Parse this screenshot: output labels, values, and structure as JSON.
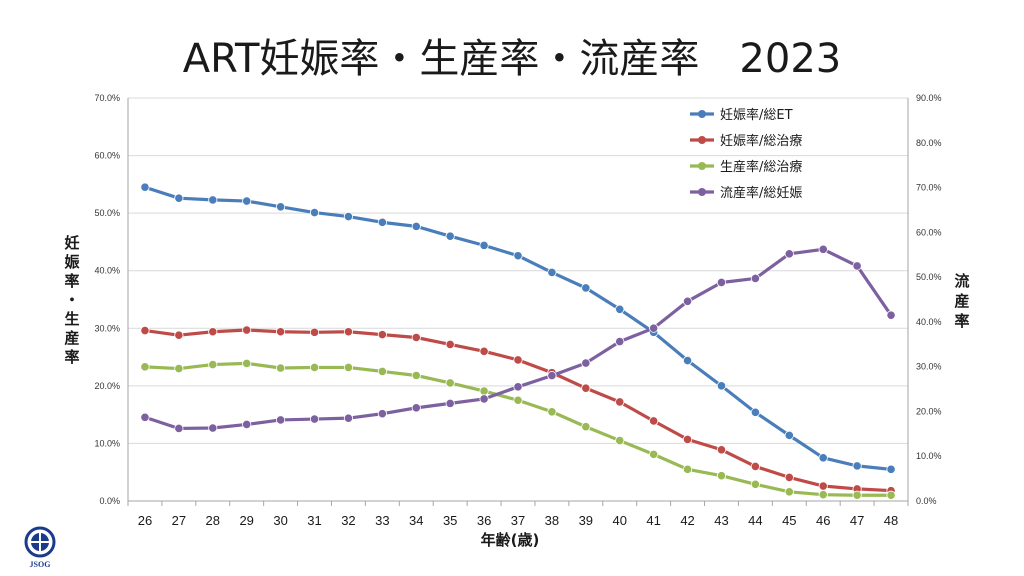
{
  "chart_data": {
    "type": "line",
    "title": "ART妊娠率・生産率・流産率　2023",
    "xlabel": "年齢(歳)",
    "ylabel_left": "妊娠率・生産率",
    "ylabel_right": "流産率",
    "x": [
      26,
      27,
      28,
      29,
      30,
      31,
      32,
      33,
      34,
      35,
      36,
      37,
      38,
      39,
      40,
      41,
      42,
      43,
      44,
      45,
      46,
      47,
      48
    ],
    "ylim_left": [
      0,
      70
    ],
    "ylim_right": [
      0,
      90
    ],
    "yticks_left": [
      "0.0%",
      "10.0%",
      "20.0%",
      "30.0%",
      "40.0%",
      "50.0%",
      "60.0%",
      "70.0%"
    ],
    "yticks_right": [
      "0.0%",
      "10.0%",
      "20.0%",
      "30.0%",
      "40.0%",
      "50.0%",
      "60.0%",
      "70.0%",
      "80.0%",
      "90.0%"
    ],
    "grid": "horizontal",
    "legend_position": "top-right",
    "series": [
      {
        "name": "妊娠率/総ET",
        "axis": "left",
        "color": "#4a7ebb",
        "values": [
          54.5,
          52.6,
          52.3,
          52.1,
          51.1,
          50.1,
          49.4,
          48.4,
          47.7,
          46.0,
          44.4,
          42.6,
          39.7,
          37.0,
          33.3,
          29.3,
          24.4,
          20.0,
          15.4,
          11.4,
          7.5,
          6.1,
          5.5
        ]
      },
      {
        "name": "妊娠率/総治療",
        "axis": "left",
        "color": "#be4b48",
        "values": [
          29.6,
          28.8,
          29.4,
          29.7,
          29.4,
          29.3,
          29.4,
          28.9,
          28.4,
          27.2,
          26.0,
          24.5,
          22.3,
          19.6,
          17.2,
          13.9,
          10.7,
          8.9,
          6.0,
          4.1,
          2.6,
          2.1,
          1.8
        ]
      },
      {
        "name": "生産率/総治療",
        "axis": "left",
        "color": "#98b954",
        "values": [
          23.3,
          23.0,
          23.7,
          23.9,
          23.1,
          23.2,
          23.2,
          22.5,
          21.8,
          20.5,
          19.1,
          17.5,
          15.5,
          12.9,
          10.5,
          8.1,
          5.5,
          4.4,
          2.9,
          1.6,
          1.1,
          1.0,
          1.0
        ]
      },
      {
        "name": "流産率/総妊娠",
        "axis": "right",
        "color": "#7d60a0",
        "values": [
          18.7,
          16.2,
          16.3,
          17.1,
          18.1,
          18.3,
          18.5,
          19.5,
          20.8,
          21.8,
          22.8,
          25.5,
          28.0,
          30.8,
          35.6,
          38.6,
          44.6,
          48.8,
          49.7,
          55.2,
          56.2,
          52.5,
          41.5
        ]
      }
    ]
  },
  "logo": {
    "text": "JSOG",
    "color": "#1a3a8a"
  }
}
